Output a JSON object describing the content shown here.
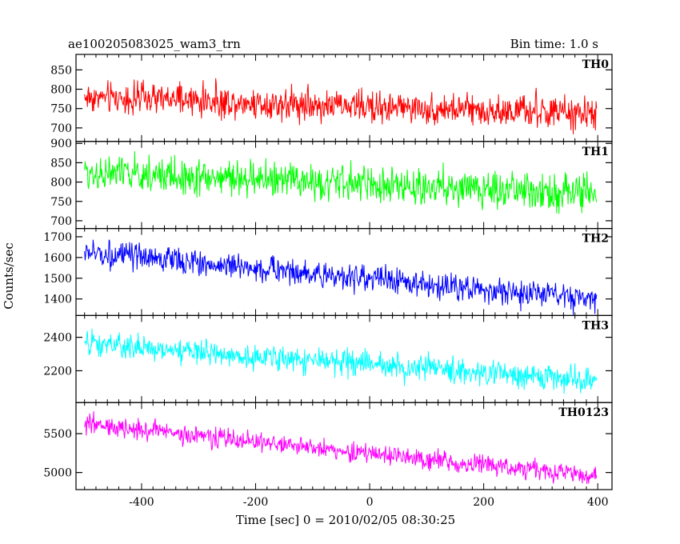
{
  "chart_data": {
    "type": "line",
    "title": "ae100205083025_wam3_trn",
    "bin_time": "Bin time: 1.0 s",
    "xlabel": "Time [sec] 0 = 2010/02/05 08:30:25",
    "ylabel": "Counts/sec",
    "xlim": [
      -515,
      425
    ],
    "xticks": [
      -400,
      -200,
      0,
      200,
      400
    ],
    "x_start": -500,
    "x_end": 398,
    "panels": [
      {
        "name": "TH0",
        "color": "#ff0000",
        "ylim": [
          665,
          890
        ],
        "yticks": [
          700,
          750,
          800,
          850
        ],
        "trend": [
          780,
          735
        ],
        "amplitude": 35
      },
      {
        "name": "TH1",
        "color": "#00ff00",
        "ylim": [
          680,
          905
        ],
        "yticks": [
          700,
          750,
          800,
          850,
          900
        ],
        "trend": [
          825,
          770
        ],
        "amplitude": 40
      },
      {
        "name": "TH2",
        "color": "#0000ff",
        "ylim": [
          1320,
          1740
        ],
        "yticks": [
          1400,
          1500,
          1600,
          1700
        ],
        "trend": [
          1625,
          1395
        ],
        "amplitude": 55
      },
      {
        "name": "TH3",
        "color": "#00ffff",
        "ylim": [
          2010,
          2530
        ],
        "yticks": [
          2200,
          2400
        ],
        "trend": [
          2360,
          2140
        ],
        "amplitude": 65
      },
      {
        "name": "TH0123",
        "color": "#ff00ff",
        "ylim": [
          4780,
          5900
        ],
        "yticks": [
          5000,
          5500
        ],
        "trend": [
          5620,
          4950
        ],
        "amplitude": 110
      }
    ]
  }
}
